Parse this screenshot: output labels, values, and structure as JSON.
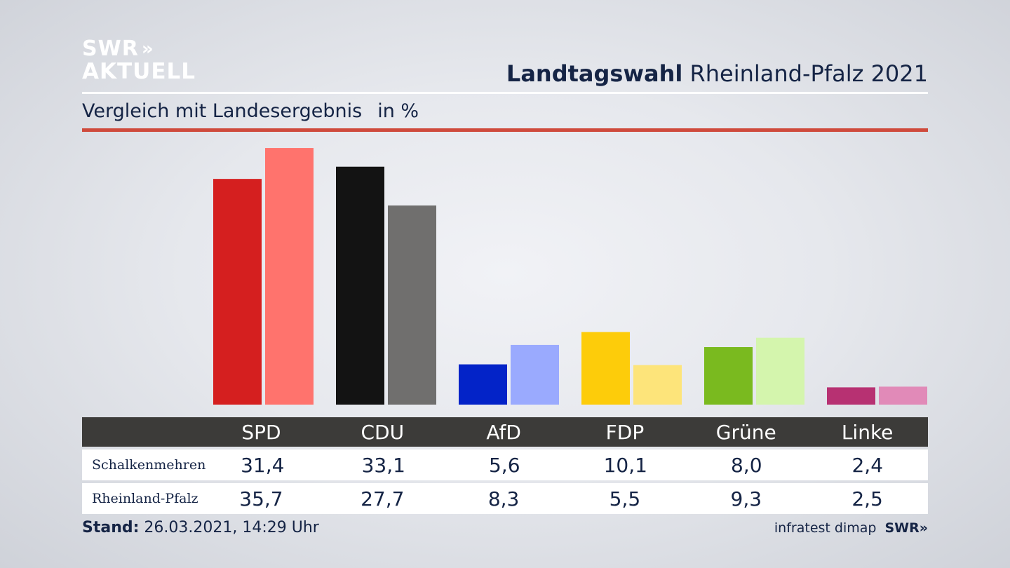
{
  "brand": {
    "logo_line1": "SWR",
    "logo_line2": "AKTUELL",
    "logo_chevrons": "»"
  },
  "header": {
    "title_bold": "Landtagswahl",
    "title_rest": "Rheinland-Pfalz 2021"
  },
  "subheader": {
    "text": "Vergleich mit Landesergebnis",
    "unit": "in %"
  },
  "footer": {
    "stand_label": "Stand:",
    "stand_value": "26.03.2021, 14:29 Uhr",
    "source": "infratest dimap",
    "source_brand": "SWR»"
  },
  "chart_data": {
    "type": "bar",
    "categories": [
      "SPD",
      "CDU",
      "AfD",
      "FDP",
      "Grüne",
      "Linke"
    ],
    "series": [
      {
        "name": "Schalkenmehren",
        "values": [
          31.4,
          33.1,
          5.6,
          10.1,
          8.0,
          2.4
        ],
        "labels": [
          "31,4",
          "33,1",
          "5,6",
          "10,1",
          "8,0",
          "2,4"
        ],
        "colors": [
          "#d51f1f",
          "#131313",
          "#0323c8",
          "#fdcc0a",
          "#7aba1f",
          "#b73172"
        ]
      },
      {
        "name": "Rheinland-Pfalz",
        "values": [
          35.7,
          27.7,
          8.3,
          5.5,
          9.3,
          2.5
        ],
        "labels": [
          "35,7",
          "27,7",
          "8,3",
          "5,5",
          "9,3",
          "2,5"
        ],
        "colors": [
          "#ff736d",
          "#706f6e",
          "#9aaafe",
          "#fde47a",
          "#d4f5ad",
          "#e18ab8"
        ]
      }
    ],
    "ylim": [
      0,
      37
    ],
    "grid": false,
    "legend": "table-below"
  }
}
